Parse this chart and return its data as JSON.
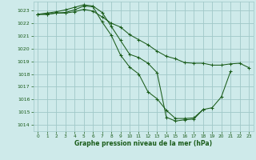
{
  "title": "Graphe pression niveau de la mer (hPa)",
  "bg_color": "#ceeaea",
  "grid_color": "#a0c8c8",
  "line_color": "#1a5c1a",
  "xlim": [
    -0.5,
    23.5
  ],
  "ylim": [
    1013.5,
    1023.7
  ],
  "yticks": [
    1014,
    1015,
    1016,
    1017,
    1018,
    1019,
    1020,
    1021,
    1022,
    1023
  ],
  "xticks": [
    0,
    1,
    2,
    3,
    4,
    5,
    6,
    7,
    8,
    9,
    10,
    11,
    12,
    13,
    14,
    15,
    16,
    17,
    18,
    19,
    20,
    21,
    22,
    23
  ],
  "series": [
    {
      "x": [
        0,
        1,
        2,
        3,
        4,
        5,
        6,
        7,
        8,
        9,
        10,
        11,
        12,
        13,
        14,
        15,
        16,
        17,
        18,
        19,
        20,
        21,
        22,
        23
      ],
      "y": [
        1022.7,
        1022.7,
        1022.8,
        1022.8,
        1022.9,
        1023.1,
        1022.95,
        1022.5,
        1022.0,
        1021.7,
        1021.1,
        1020.7,
        1020.3,
        1019.8,
        1019.4,
        1019.2,
        1018.9,
        1018.85,
        1018.85,
        1018.7,
        1018.7,
        1018.8,
        1018.85,
        1018.5
      ]
    },
    {
      "x": [
        0,
        1,
        2,
        3,
        4,
        5,
        6,
        7,
        8,
        9,
        10,
        11,
        12,
        13,
        14,
        15,
        16,
        17,
        18,
        19,
        20,
        21
      ],
      "y": [
        1022.7,
        1022.7,
        1022.8,
        1022.85,
        1023.05,
        1023.35,
        1023.3,
        1022.1,
        1021.05,
        1019.5,
        1018.55,
        1018.0,
        1016.6,
        1016.05,
        1015.15,
        1014.5,
        1014.5,
        1014.55,
        1015.2,
        1015.35,
        1016.2,
        1018.2
      ]
    },
    {
      "x": [
        0,
        1,
        2,
        3,
        4,
        5,
        6,
        7,
        8,
        9,
        10,
        11,
        12,
        13,
        14,
        15,
        16,
        17,
        18
      ],
      "y": [
        1022.7,
        1022.8,
        1022.9,
        1023.05,
        1023.25,
        1023.45,
        1023.35,
        1022.85,
        1021.75,
        1020.65,
        1019.55,
        1019.3,
        1018.85,
        1018.1,
        1014.6,
        1014.3,
        1014.4,
        1014.45,
        1015.2
      ]
    }
  ]
}
